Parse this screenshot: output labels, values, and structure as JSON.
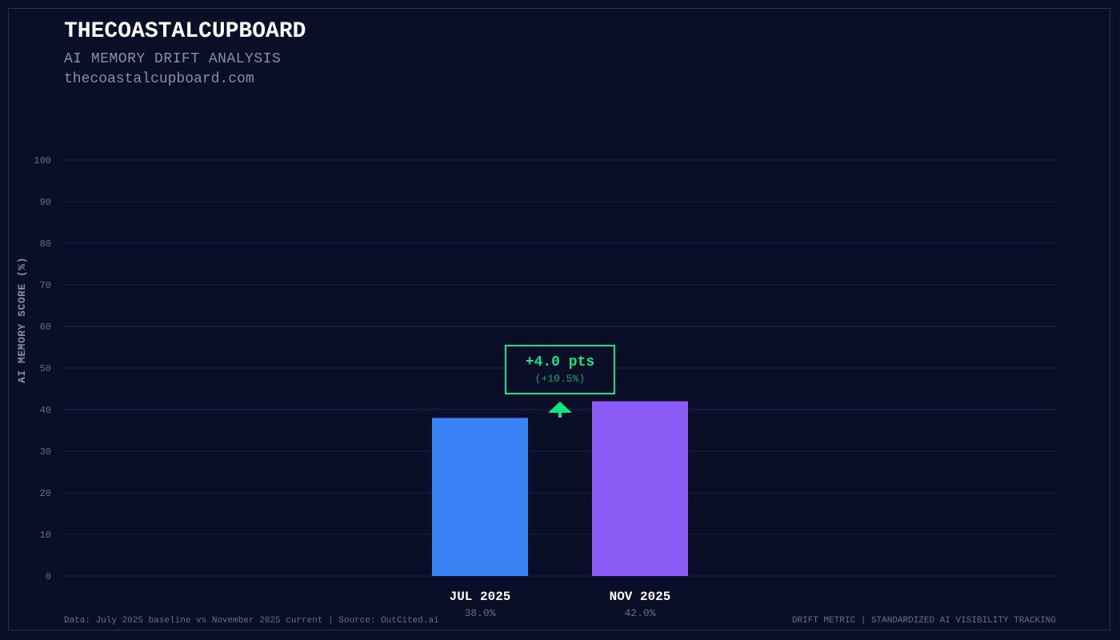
{
  "header": {
    "brand": "THECOASTALCUPBOARD",
    "subtitle": "AI MEMORY DRIFT ANALYSIS",
    "site": "thecoastalcupboard.com"
  },
  "footer": {
    "left": "Data: July 2025 baseline vs November 2025 current | Source: OutCited.ai",
    "right": "DRIFT METRIC | STANDARDIZED AI VISIBILITY TRACKING"
  },
  "colors": {
    "background": "#0a0e27",
    "bar_jul": "#3b82f6",
    "bar_nov": "#8b5cf6",
    "accent_green": "#10e584",
    "grid": "#1c2240"
  },
  "chart_data": {
    "type": "bar",
    "title": "",
    "xlabel": "",
    "ylabel": "AI MEMORY SCORE (%)",
    "ylim": [
      0,
      100
    ],
    "yticks": [
      0,
      10,
      20,
      30,
      40,
      50,
      60,
      70,
      80,
      90,
      100
    ],
    "grid": true,
    "categories": [
      "JUL 2025",
      "NOV 2025"
    ],
    "values": [
      38.0,
      42.0
    ],
    "value_labels": [
      "38.0%",
      "42.0%"
    ],
    "annotation": {
      "main": "+4.0 pts",
      "sub": "(+10.5%)",
      "icon": "arrow-up-icon"
    }
  }
}
